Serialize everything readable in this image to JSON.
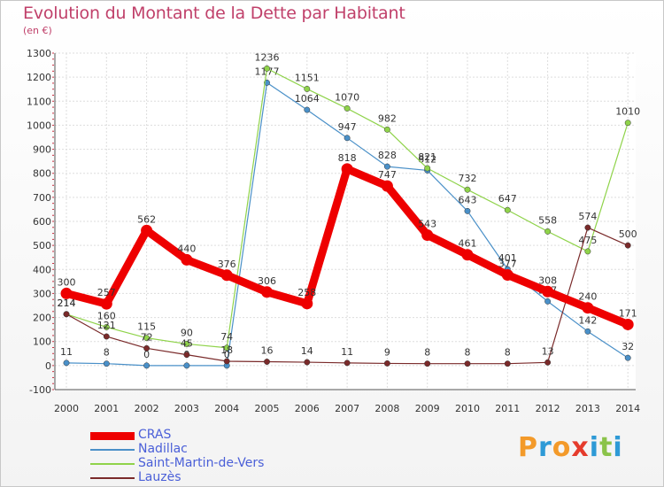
{
  "title": "Evolution du Montant de la Dette par Habitant",
  "subtitle": "(en €)",
  "logo": {
    "letters": [
      "P",
      "r",
      "o",
      "x",
      "i",
      "t",
      "i"
    ],
    "colors": [
      "#f39a2a",
      "#2e9ad6",
      "#f39a2a",
      "#e53b2c",
      "#2e9ad6",
      "#8bc34a",
      "#2e9ad6"
    ]
  },
  "chart_data": {
    "type": "line",
    "title": "Evolution du Montant de la Dette par Habitant",
    "ylabel": "(en €)",
    "ylim": [
      -100,
      1300
    ],
    "yticks": [
      -100,
      0,
      100,
      200,
      300,
      400,
      500,
      600,
      700,
      800,
      900,
      1000,
      1100,
      1200,
      1300
    ],
    "x": [
      "2000",
      "2001",
      "2002",
      "2003",
      "2004",
      "2005",
      "2006",
      "2007",
      "2008",
      "2009",
      "2010",
      "2011",
      "2012",
      "2013",
      "2014"
    ],
    "grid": true,
    "legend_position": "bottom-left",
    "series": [
      {
        "name": "Nadillac",
        "color": "#4a90c8",
        "width": 1.2,
        "values": [
          11,
          8,
          0,
          0,
          0,
          1177,
          1064,
          947,
          828,
          812,
          643,
          401,
          267,
          142,
          32
        ],
        "labels": [
          "11",
          "8",
          "0",
          "0",
          "0",
          "1177",
          "1064",
          "947",
          "828",
          "812",
          "643",
          "401",
          "267",
          "142",
          "32"
        ]
      },
      {
        "name": "Saint-Martin-de-Vers",
        "color": "#8fd34a",
        "width": 1.2,
        "values": [
          214,
          160,
          115,
          90,
          74,
          1236,
          1151,
          1070,
          982,
          821,
          732,
          647,
          558,
          475,
          1010
        ],
        "labels": [
          "214",
          "160",
          "115",
          "90",
          "74",
          "1236",
          "1151",
          "1070",
          "982",
          "821",
          "732",
          "647",
          "558",
          "475",
          "1010"
        ]
      },
      {
        "name": "Lauzès",
        "color": "#7a2a2a",
        "width": 1.2,
        "values": [
          214,
          121,
          72,
          45,
          18,
          16,
          14,
          11,
          9,
          8,
          8,
          8,
          13,
          574,
          500
        ],
        "labels": [
          "214",
          "121",
          "72",
          "45",
          "18",
          "16",
          "14",
          "11",
          "9",
          "8",
          "8",
          "8",
          "13",
          "574",
          "500"
        ]
      },
      {
        "name": "CRAS",
        "color": "#ee0000",
        "width": 9,
        "values": [
          300,
          257,
          562,
          440,
          376,
          306,
          258,
          818,
          747,
          543,
          461,
          377,
          308,
          240,
          171
        ],
        "labels": [
          "300",
          "257",
          "562",
          "440",
          "376",
          "306",
          "258",
          "818",
          "747",
          "543",
          "461",
          "377",
          "308",
          "240",
          "171"
        ]
      }
    ],
    "legend": [
      "CRAS",
      "Nadillac",
      "Saint-Martin-de-Vers",
      "Lauzès"
    ]
  }
}
